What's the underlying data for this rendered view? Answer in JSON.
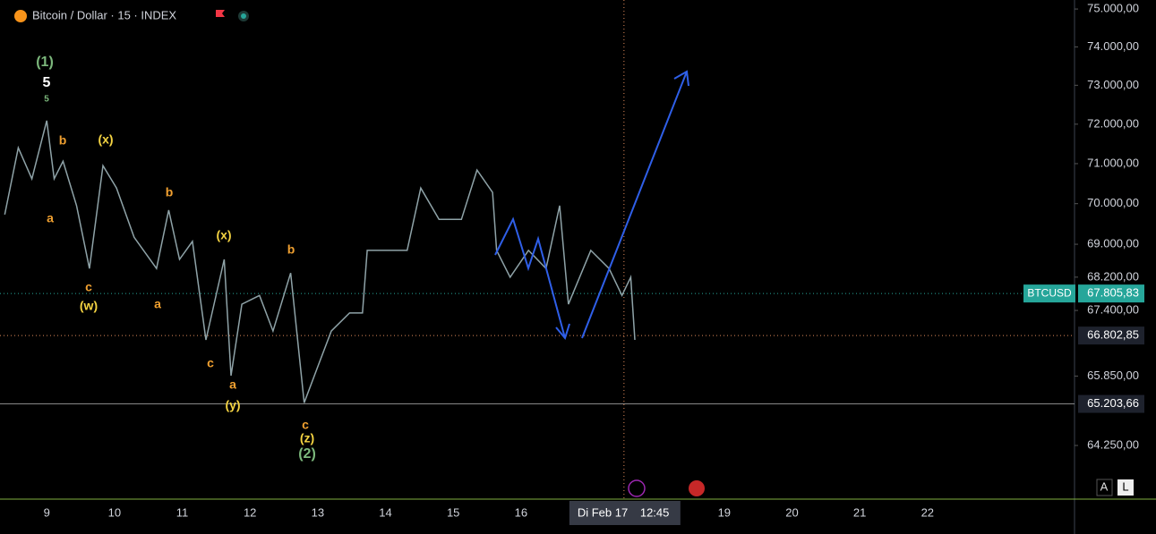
{
  "header": {
    "symbol": "Bitcoin / Dollar · 15 · INDEX",
    "buttons": [
      "A",
      "L"
    ]
  },
  "chart_data": {
    "type": "line",
    "log_scale": true,
    "x": [
      8.38,
      8.58,
      8.78,
      9.0,
      9.11,
      9.24,
      9.44,
      9.63,
      9.83,
      10.03,
      10.29,
      10.62,
      10.8,
      10.96,
      11.15,
      11.35,
      11.62,
      11.72,
      11.88,
      12.14,
      12.34,
      12.6,
      12.8,
      13.0,
      13.2,
      13.47,
      13.66,
      13.73,
      13.99,
      14.32,
      14.52,
      14.79,
      15.12,
      15.35,
      15.58,
      15.64,
      15.84,
      16.11,
      16.37,
      16.57,
      16.7,
      17.03,
      17.3,
      17.49,
      17.62,
      17.68
    ],
    "series": [
      {
        "name": "BTCUSD",
        "color": "#8fa3a8",
        "values": [
          69730,
          71400,
          70620,
          72090,
          70620,
          71060,
          69950,
          68410,
          70950,
          70390,
          69170,
          68410,
          69840,
          68630,
          69070,
          66700,
          68630,
          65860,
          67550,
          67760,
          66910,
          68300,
          65230,
          66070,
          66910,
          67340,
          67340,
          68850,
          68850,
          68850,
          70390,
          69610,
          69610,
          70840,
          70280,
          68850,
          68200,
          68850,
          68410,
          69950,
          67550,
          68850,
          68410,
          67760,
          68200,
          66700
        ]
      }
    ],
    "xlim": [
      8.31,
      24.17
    ],
    "xticks": [
      9,
      10,
      11,
      12,
      13,
      14,
      15,
      16,
      19,
      20,
      21,
      22
    ],
    "ylim": [
      63040,
      75240
    ],
    "yticks": [
      {
        "value": 75000,
        "label": "75.000,00"
      },
      {
        "value": 74000,
        "label": "74.000,00"
      },
      {
        "value": 73000,
        "label": "73.000,00"
      },
      {
        "value": 72000,
        "label": "72.000,00"
      },
      {
        "value": 71000,
        "label": "71.000,00"
      },
      {
        "value": 70000,
        "label": "70.000,00"
      },
      {
        "value": 69000,
        "label": "69.000,00"
      },
      {
        "value": 68200,
        "label": "68.200,00"
      },
      {
        "value": 67400,
        "label": "67.400,00"
      },
      {
        "value": 65850,
        "label": "65.850,00"
      },
      {
        "value": 64250,
        "label": "64.250,00"
      }
    ],
    "crosshair": {
      "value": 17.52,
      "label": "Di Feb 17",
      "time": "12:45"
    },
    "price_lines": [
      {
        "name": "BTCUSD",
        "value": 67805.83,
        "label": "67.805,83",
        "color": "#26a69a"
      },
      {
        "value": 66802.85,
        "label": "66.802,85",
        "color": "#e0895a"
      },
      {
        "value": 65203.66,
        "label": "65.203,66",
        "color": "#888888"
      }
    ],
    "annotations": [
      "(1)",
      "5",
      "5",
      "b",
      "(x)",
      "a",
      "c",
      "(w)",
      "b",
      "a",
      "(x)",
      "c",
      "a",
      "(y)",
      "b",
      "c",
      "(z)",
      "(2)"
    ]
  }
}
